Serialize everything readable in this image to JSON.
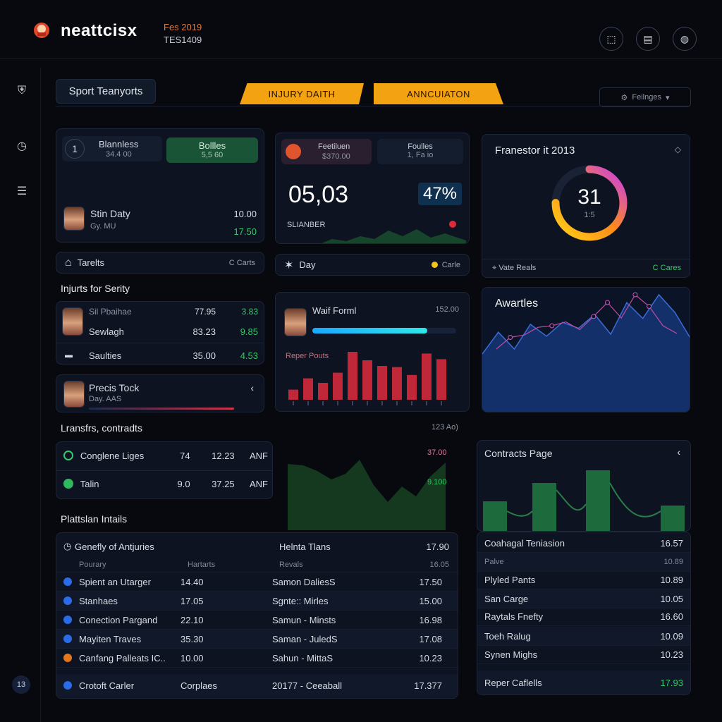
{
  "topbar": {
    "brand": "neattcisx",
    "sub1": "Fes 2019",
    "sub2": "TES1409"
  },
  "tabs": {
    "search": "Sport Teanyorts",
    "pill1": "INJURY DAITH",
    "pill2": "ANNCUIATON",
    "filter": "Feilnges"
  },
  "balance_card": {
    "index": "1",
    "title": "Blannless",
    "title_val": "34.4 00",
    "bal_label": "Bollles",
    "bal_val": "5,5 60",
    "player_name": "Stin Daty",
    "player_sub": "Gy. MU",
    "player_val1": "10.00",
    "player_val2": "17.50"
  },
  "tarelts": {
    "label": "Tarelts",
    "right": "C Carts"
  },
  "score_card": {
    "chip1_title": "Feetiluen",
    "chip1_val": "$370.00",
    "chip2_title": "Foulles",
    "chip2_val": "1, Fa io",
    "big": "05,03",
    "pct": "47%",
    "label": "SLIANBER"
  },
  "day_bar": {
    "label": "Day",
    "right": "Carle"
  },
  "donut_card": {
    "title": "Franestor it 2013",
    "value": "31",
    "sub": "1:5",
    "footer_label": "Vate Reals",
    "footer_right": "C Cares",
    "percent": 0.75
  },
  "injuries": {
    "heading": "Injurts for Serity",
    "rows": [
      {
        "name": "Sil Pbaihae",
        "a": "77.95",
        "b": "3.83"
      },
      {
        "name": "Sewlagh",
        "a": "83.23",
        "b": "9.85"
      },
      {
        "name": "Saulties",
        "a": "35.00",
        "b": "4.53"
      }
    ]
  },
  "wait_card": {
    "title": "Waif Forml",
    "value": "152.00",
    "sub": "Reper Pouts",
    "progress": 0.8,
    "bars": [
      18,
      38,
      30,
      48,
      85,
      70,
      60,
      58,
      44,
      82,
      72
    ]
  },
  "awartles": {
    "title": "Awartles",
    "series": [
      40,
      62,
      45,
      70,
      58,
      72,
      66,
      80,
      60,
      92,
      76,
      100,
      82,
      55
    ]
  },
  "precis": {
    "name": "Precis Tock",
    "sub": "Day. AAS"
  },
  "transfers": {
    "heading": "Lransfrs, contradts",
    "right": "123 Ao)",
    "rows": [
      {
        "name": "Conglene Liges",
        "a": "74",
        "b": "12.23",
        "c": "ANF"
      },
      {
        "name": "Talin",
        "a": "9.0",
        "b": "37.25",
        "c": "ANF"
      }
    ],
    "chart_top": "37.00",
    "chart_right": "9.100"
  },
  "contracts": {
    "title": "Contracts Page"
  },
  "plattsian": {
    "heading": "Plattslan Intails",
    "head_left": "Genefly of Antjuries",
    "head_mid": "Helnta Tlans",
    "head_right": "17.90",
    "sub_c1": "Pourary",
    "sub_c2": "Hartarts",
    "sub_c3": "Revals",
    "sub_c4": "16.05",
    "rows": [
      {
        "name": "Spient an Utarger",
        "v": "14.40",
        "m": "Samon DaliesS",
        "r": "17.50"
      },
      {
        "name": "Stanhaes",
        "v": "17.05",
        "m": "Sgnte:: Mirles",
        "r": "15.00"
      },
      {
        "name": "Conection Pargand",
        "v": "22.10",
        "m": "Samun - Minsts",
        "r": "16.98"
      },
      {
        "name": "Mayiten Traves",
        "v": "35.30",
        "m": "Saman - JuledS",
        "r": "17.08"
      },
      {
        "name": "Canfang Palleats IC..",
        "v": "10.00",
        "m": "Sahun - MittaS",
        "r": "10.23"
      },
      {
        "name": "Crotoft Carler",
        "v": "Corplaes",
        "m": "20177 - Ceeaball",
        "r": "17.377"
      }
    ]
  },
  "right_table": {
    "rows": [
      {
        "name": "Coahagal Teniasion",
        "v": "16.57"
      },
      {
        "name": "Palve",
        "v": "10.89"
      },
      {
        "name": "Plyled Pants",
        "v": "10.89"
      },
      {
        "name": "San Carge",
        "v": "10.05"
      },
      {
        "name": "Raytals Fnefty",
        "v": "16.60"
      },
      {
        "name": "Toeh Ralug",
        "v": "10.09"
      },
      {
        "name": "Synen Mighs",
        "v": "10.23"
      },
      {
        "name": "Reper Caflells",
        "v": "17.93"
      }
    ]
  },
  "rail": {
    "badge": "13"
  }
}
